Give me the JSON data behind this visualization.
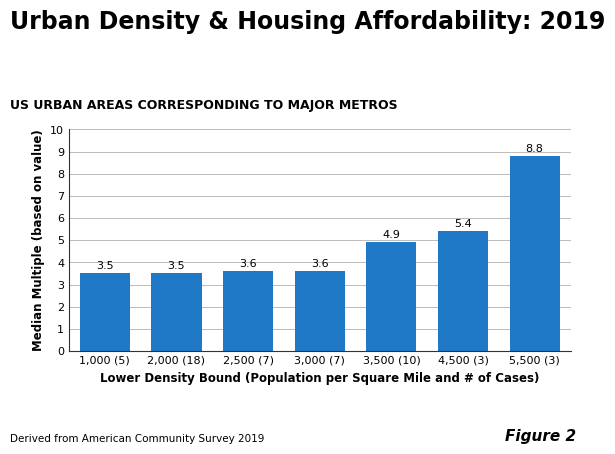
{
  "title": "Urban Density & Housing Affordability: 2019",
  "subtitle": "US URBAN AREAS CORRESPONDING TO MAJOR METROS",
  "categories": [
    "1,000 (5)",
    "2,000 (18)",
    "2,500 (7)",
    "3,000 (7)",
    "3,500 (10)",
    "4,500 (3)",
    "5,500 (3)"
  ],
  "values": [
    3.5,
    3.5,
    3.6,
    3.6,
    4.9,
    5.4,
    8.8
  ],
  "bar_color": "#2079c7",
  "xlabel": "Lower Density Bound (Population per Square Mile and # of Cases)",
  "ylabel": "Median Multiple (based on value)",
  "ylim": [
    0,
    10
  ],
  "yticks": [
    0,
    1,
    2,
    3,
    4,
    5,
    6,
    7,
    8,
    9,
    10
  ],
  "footnote": "Derived from American Community Survey 2019",
  "figure_label": "Figure 2",
  "title_fontsize": 17,
  "subtitle_fontsize": 9,
  "xlabel_fontsize": 8.5,
  "ylabel_fontsize": 8.5,
  "tick_fontsize": 8,
  "bar_label_fontsize": 8,
  "footnote_fontsize": 7.5,
  "figure_label_fontsize": 11,
  "background_color": "#ffffff"
}
